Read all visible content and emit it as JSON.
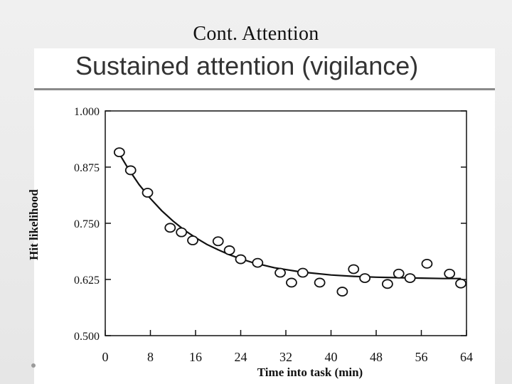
{
  "slide": {
    "title": "Cont. Attention"
  },
  "figure": {
    "heading": "Sustained attention (vigilance)"
  },
  "chart_data": {
    "type": "scatter",
    "xlabel": "Time into task (min)",
    "ylabel": "Hit likelihood",
    "xlim": [
      0,
      64
    ],
    "ylim": [
      0.5,
      1.0
    ],
    "x_ticks": [
      "0",
      "8",
      "16",
      "24",
      "32",
      "40",
      "48",
      "56",
      "64"
    ],
    "y_ticks": [
      "1.000",
      "0.875",
      "0.750",
      "0.625",
      "0.500"
    ],
    "series": [
      {
        "name": "observed",
        "style": "open-circle",
        "x": [
          2.5,
          4.5,
          7.5,
          11.5,
          13.5,
          15.5,
          20,
          22,
          24,
          27,
          31,
          33,
          35,
          38,
          42,
          44,
          46,
          50,
          52,
          54,
          57,
          61,
          63
        ],
        "y": [
          0.908,
          0.868,
          0.818,
          0.74,
          0.73,
          0.712,
          0.71,
          0.69,
          0.67,
          0.662,
          0.64,
          0.618,
          0.64,
          0.618,
          0.598,
          0.648,
          0.628,
          0.615,
          0.638,
          0.628,
          0.66,
          0.638,
          0.616
        ]
      },
      {
        "name": "fitted curve",
        "style": "line",
        "x": [
          2,
          4,
          6,
          8,
          10,
          12,
          14,
          16,
          18,
          20,
          22,
          24,
          26,
          28,
          30,
          32,
          34,
          36,
          40,
          44,
          48,
          52,
          56,
          60,
          63
        ],
        "y": [
          0.915,
          0.873,
          0.836,
          0.805,
          0.778,
          0.755,
          0.735,
          0.718,
          0.703,
          0.691,
          0.68,
          0.671,
          0.663,
          0.657,
          0.651,
          0.647,
          0.643,
          0.64,
          0.635,
          0.632,
          0.63,
          0.629,
          0.628,
          0.627,
          0.627
        ]
      }
    ]
  }
}
